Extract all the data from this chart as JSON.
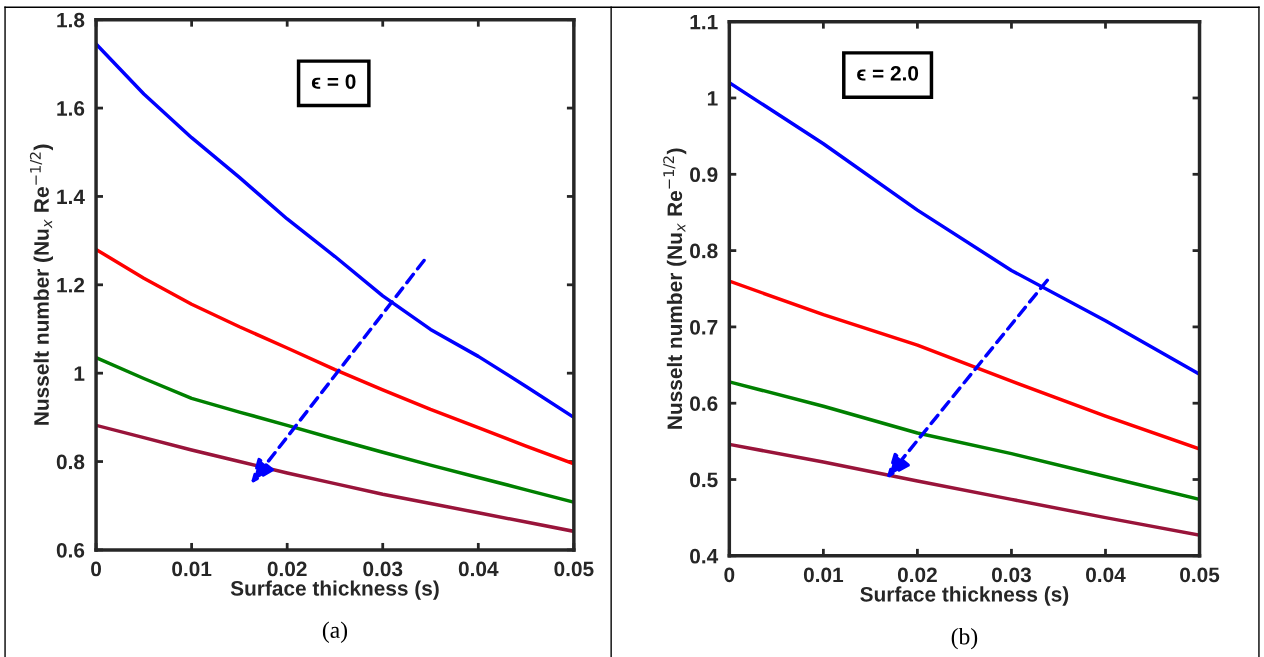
{
  "chart_data": [
    {
      "type": "line",
      "xlabel": "Surface thickness (s)",
      "ylabel": "Nusselt number (Nu$_{x}$ Re$^{−1/2}$)",
      "annotations": [
        "ϵ = 0",
        "(a)"
      ],
      "x": [
        0,
        0.005,
        0.01,
        0.015,
        0.02,
        0.025,
        0.03,
        0.035,
        0.04,
        0.045,
        0.05
      ],
      "xlim": [
        0,
        0.05
      ],
      "xticks": [
        0,
        0.01,
        0.02,
        0.03,
        0.04,
        0.05
      ],
      "ylim": [
        0.6,
        1.8
      ],
      "yticks": [
        0.6,
        0.8,
        1,
        1.2,
        1.4,
        1.6,
        1.8
      ],
      "grid": false,
      "legend": false,
      "series": [
        {
          "color": "#0000ff",
          "values": [
            1.745,
            1.632,
            1.533,
            1.443,
            1.349,
            1.264,
            1.175,
            1.099,
            1.038,
            0.97,
            0.9
          ]
        },
        {
          "color": "#ff0000",
          "values": [
            1.28,
            1.215,
            1.156,
            1.105,
            1.057,
            1.008,
            0.962,
            0.918,
            0.877,
            0.835,
            0.795
          ]
        },
        {
          "color": "#008000",
          "values": [
            1.035,
            0.988,
            0.943,
            0.912,
            0.882,
            0.851,
            0.821,
            0.792,
            0.764,
            0.736,
            0.708
          ]
        },
        {
          "color": "#99143a",
          "values": [
            0.882,
            0.854,
            0.826,
            0.8,
            0.774,
            0.75,
            0.726,
            0.705,
            0.684,
            0.663,
            0.642
          ]
        }
      ]
    },
    {
      "type": "line",
      "xlabel": "Surface thickness (s)",
      "ylabel": "Nusselt number (Nu$_{x}$ Re$^{−1/2}$)",
      "annotations": [
        "ϵ = 2.0",
        "(b)"
      ],
      "x": [
        0,
        0.01,
        0.02,
        0.03,
        0.04,
        0.05
      ],
      "xlim": [
        0,
        0.05
      ],
      "xticks": [
        0,
        0.01,
        0.02,
        0.03,
        0.04,
        0.05
      ],
      "ylim": [
        0.4,
        1.1
      ],
      "yticks": [
        0.4,
        0.5,
        0.6,
        0.7,
        0.8,
        0.9,
        1,
        1.1
      ],
      "grid": false,
      "legend": false,
      "series": [
        {
          "color": "#0000ff",
          "values": [
            1.02,
            0.94,
            0.853,
            0.774,
            0.708,
            0.638
          ]
        },
        {
          "color": "#ff0000",
          "values": [
            0.76,
            0.716,
            0.676,
            0.629,
            0.583,
            0.54
          ]
        },
        {
          "color": "#008000",
          "values": [
            0.628,
            0.596,
            0.561,
            0.534,
            0.504,
            0.474
          ]
        },
        {
          "color": "#99143a",
          "values": [
            0.546,
            0.523,
            0.498,
            0.474,
            0.45,
            0.427
          ]
        }
      ]
    }
  ]
}
